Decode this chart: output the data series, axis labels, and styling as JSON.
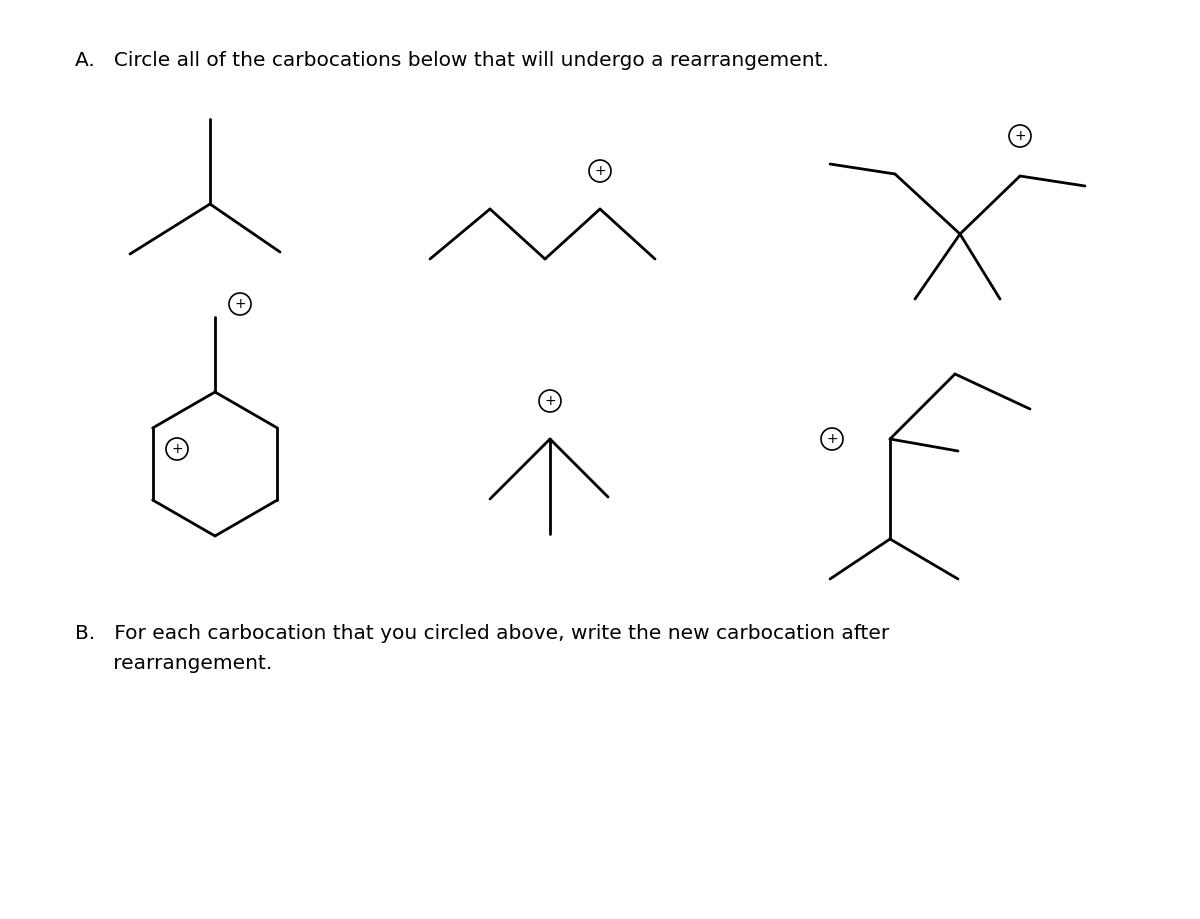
{
  "title_a": "A.   Circle all of the carbocations below that will undergo a rearrangement.",
  "title_b_line1": "B.   For each carbocation that you circled above, write the new carbocation after",
  "title_b_line2": "      rearrangement.",
  "background_color": "#ffffff",
  "text_color": "#000000",
  "line_color": "#000000",
  "line_width": 2.0,
  "label_fontsize": 14.5
}
